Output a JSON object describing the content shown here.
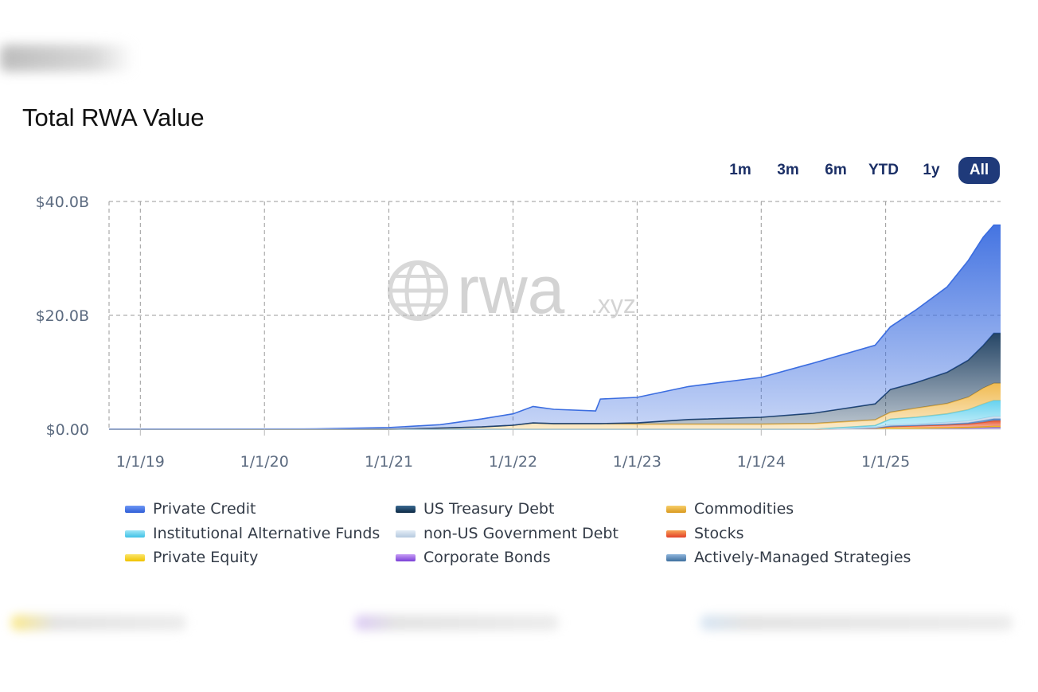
{
  "header": {
    "title": "Total RWA Value"
  },
  "range_buttons": [
    {
      "label": "1m",
      "active": false
    },
    {
      "label": "3m",
      "active": false
    },
    {
      "label": "6m",
      "active": false
    },
    {
      "label": "YTD",
      "active": false
    },
    {
      "label": "1y",
      "active": false
    },
    {
      "label": "All",
      "active": true
    }
  ],
  "watermark": {
    "text": "rwa",
    "suffix": ".xyz"
  },
  "chart_data": {
    "type": "area",
    "stacked": true,
    "title": "Total RWA Value",
    "xlabel": "",
    "ylabel": "",
    "ylim": [
      0,
      40
    ],
    "y_unit": "$B",
    "y_ticks": [
      "$0.00",
      "$20.0B",
      "$40.0B"
    ],
    "x_range": [
      "2018-10-01",
      "2025-12-05"
    ],
    "x_ticks": [
      "1/1/19",
      "1/1/20",
      "1/1/21",
      "1/1/22",
      "1/1/23",
      "1/1/24",
      "1/1/25"
    ],
    "grid": true,
    "legend_position": "bottom",
    "x": [
      "2018-10-01",
      "2020-06-01",
      "2021-01-01",
      "2021-06-01",
      "2021-10-01",
      "2022-01-01",
      "2022-03-01",
      "2022-05-01",
      "2022-09-01",
      "2022-09-15",
      "2023-01-01",
      "2023-06-01",
      "2024-01-01",
      "2024-06-01",
      "2024-12-01",
      "2025-01-15",
      "2025-04-01",
      "2025-07-01",
      "2025-09-01",
      "2025-10-15",
      "2025-11-15",
      "2025-12-05"
    ],
    "series": [
      {
        "name": "Corporate Bonds",
        "color": "#7b4fd8",
        "values": [
          0,
          0,
          0,
          0,
          0,
          0,
          0,
          0,
          0,
          0,
          0,
          0,
          0,
          0,
          0.05,
          0.1,
          0.12,
          0.15,
          0.2,
          0.3,
          0.35,
          0.35
        ]
      },
      {
        "name": "Private Equity",
        "color": "#f2cf1c",
        "values": [
          0,
          0,
          0,
          0,
          0,
          0,
          0,
          0,
          0,
          0,
          0,
          0,
          0,
          0,
          0.05,
          0.08,
          0.08,
          0.1,
          0.12,
          0.12,
          0.15,
          0.15
        ]
      },
      {
        "name": "Stocks",
        "color": "#e8512a",
        "values": [
          0,
          0,
          0,
          0,
          0,
          0,
          0,
          0,
          0,
          0,
          0,
          0,
          0,
          0,
          0.1,
          0.3,
          0.4,
          0.5,
          0.6,
          0.8,
          1.0,
          1.0
        ]
      },
      {
        "name": "Actively-Managed Strategies",
        "color": "#4f86c6",
        "values": [
          0,
          0,
          0,
          0,
          0,
          0,
          0,
          0,
          0,
          0,
          0,
          0,
          0,
          0,
          0.05,
          0.1,
          0.1,
          0.15,
          0.2,
          0.3,
          0.35,
          0.35
        ]
      },
      {
        "name": "non-US Government Debt",
        "color": "#c9d9ea",
        "values": [
          0,
          0,
          0,
          0,
          0,
          0,
          0,
          0,
          0,
          0,
          0,
          0,
          0,
          0,
          0.1,
          0.2,
          0.2,
          0.3,
          0.3,
          0.4,
          0.4,
          0.4
        ]
      },
      {
        "name": "Institutional Alternative Funds",
        "color": "#5fd0ee",
        "values": [
          0,
          0,
          0,
          0,
          0,
          0,
          0,
          0,
          0,
          0,
          0,
          0,
          0,
          0,
          0.3,
          1.0,
          1.2,
          1.5,
          2.0,
          2.5,
          2.8,
          2.8
        ]
      },
      {
        "name": "Commodities",
        "color": "#f0b84a",
        "values": [
          0,
          0,
          0,
          0.2,
          0.4,
          0.7,
          1.1,
          1.0,
          1.0,
          1.0,
          0.9,
          0.9,
          0.9,
          1.0,
          1.0,
          1.2,
          1.6,
          1.8,
          2.2,
          2.8,
          3.0,
          3.0
        ]
      },
      {
        "name": "US Treasury Debt",
        "color": "#1a3c5e",
        "values": [
          0,
          0,
          0,
          0,
          0,
          0,
          0,
          0,
          0,
          0,
          0.2,
          0.8,
          1.2,
          1.8,
          2.8,
          4.0,
          4.5,
          5.5,
          6.5,
          7.5,
          8.8,
          8.8
        ]
      },
      {
        "name": "Private Credit",
        "color": "#3b6de0",
        "values": [
          0.02,
          0.05,
          0.3,
          0.6,
          1.4,
          2.0,
          2.9,
          2.5,
          2.2,
          4.3,
          4.5,
          5.8,
          7.0,
          8.8,
          10.3,
          11.0,
          12.8,
          15.0,
          17.5,
          19.0,
          19.0,
          19.0
        ]
      }
    ]
  },
  "legend": [
    {
      "name": "Private Credit",
      "c1": "#6e97f5",
      "c2": "#2f5ed6"
    },
    {
      "name": "US Treasury Debt",
      "c1": "#3b6a92",
      "c2": "#0e2a45"
    },
    {
      "name": "Commodities",
      "c1": "#f7cf6b",
      "c2": "#d99a20"
    },
    {
      "name": "Institutional Alternative Funds",
      "c1": "#9fe6f7",
      "c2": "#3ec1e6"
    },
    {
      "name": "non-US Government Debt",
      "c1": "#e4edf6",
      "c2": "#b5c9de"
    },
    {
      "name": "Stocks",
      "c1": "#f7a255",
      "c2": "#e2402a"
    },
    {
      "name": "Private Equity",
      "c1": "#fbe56a",
      "c2": "#f0c200"
    },
    {
      "name": "Corporate Bonds",
      "c1": "#c79df5",
      "c2": "#7a3fd6"
    },
    {
      "name": "Actively-Managed Strategies",
      "c1": "#8fb6dc",
      "c2": "#3f6f9e"
    }
  ]
}
